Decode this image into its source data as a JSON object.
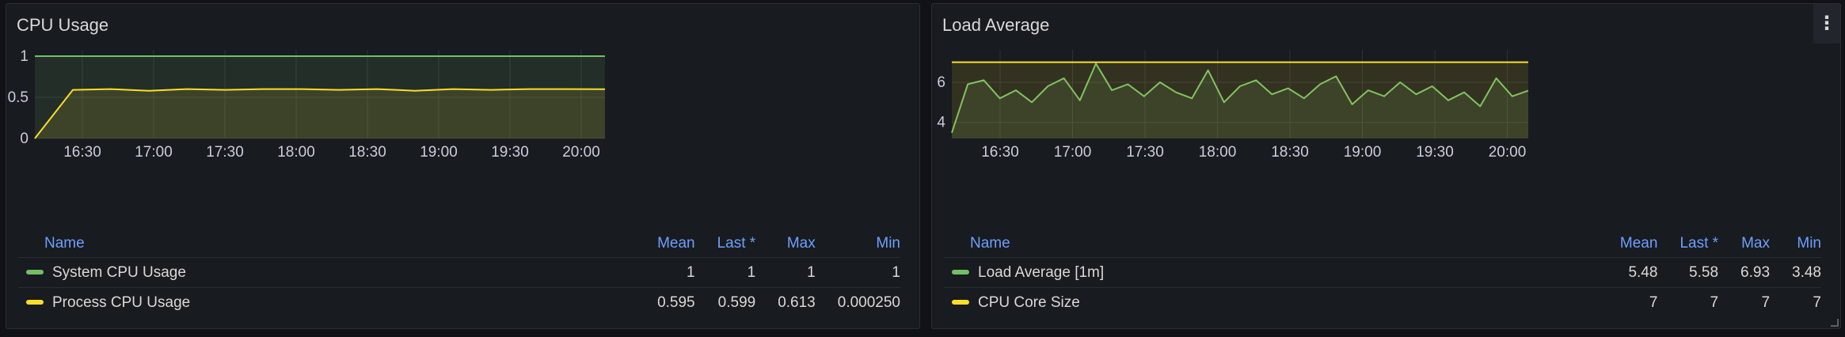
{
  "colors": {
    "green": "#73bf69",
    "yellow": "#fade2a",
    "header": "#6e9fff"
  },
  "legend_headers": {
    "name": "Name",
    "mean": "Mean",
    "last": "Last *",
    "max": "Max",
    "min": "Min"
  },
  "panels": [
    {
      "title": "CPU Usage",
      "chart_data": {
        "type": "area",
        "x_ticks": [
          "16:30",
          "17:00",
          "17:30",
          "18:00",
          "18:30",
          "19:00",
          "19:30",
          "20:00"
        ],
        "y_ticks": [
          "0",
          "0.5",
          "1"
        ],
        "ylim": [
          0,
          1
        ],
        "grid": true,
        "series": [
          {
            "name": "System CPU Usage",
            "color": "#73bf69",
            "values": [
              1,
              1,
              1,
              1,
              1,
              1,
              1,
              1,
              1,
              1,
              1,
              1,
              1,
              1,
              1,
              1
            ]
          },
          {
            "name": "Process CPU Usage",
            "color": "#fade2a",
            "values": [
              0,
              0.59,
              0.6,
              0.58,
              0.6,
              0.59,
              0.6,
              0.6,
              0.59,
              0.6,
              0.58,
              0.6,
              0.59,
              0.6,
              0.6,
              0.599
            ]
          }
        ]
      },
      "legend": [
        {
          "name": "System CPU Usage",
          "color": "#73bf69",
          "mean": "1",
          "last": "1",
          "max": "1",
          "min": "1"
        },
        {
          "name": "Process CPU Usage",
          "color": "#fade2a",
          "mean": "0.595",
          "last": "0.599",
          "max": "0.613",
          "min": "0.000250"
        }
      ]
    },
    {
      "title": "Load Average",
      "menu_icon": "vertical-ellipsis-icon",
      "chart_data": {
        "type": "area",
        "x_ticks": [
          "16:30",
          "17:00",
          "17:30",
          "18:00",
          "18:30",
          "19:00",
          "19:30",
          "20:00"
        ],
        "y_ticks": [
          "4",
          "6"
        ],
        "ylim": [
          3.2,
          7.3
        ],
        "grid": true,
        "series": [
          {
            "name": "Load Average [1m]",
            "color": "#73bf69",
            "values": [
              3.48,
              5.9,
              6.1,
              5.2,
              5.6,
              5.0,
              5.8,
              6.2,
              5.1,
              6.93,
              5.6,
              5.9,
              5.3,
              6.0,
              5.5,
              5.2,
              6.6,
              5.0,
              5.8,
              6.1,
              5.4,
              5.7,
              5.2,
              5.9,
              6.3,
              4.9,
              5.6,
              5.3,
              6.0,
              5.4,
              5.8,
              5.1,
              5.5,
              4.8,
              6.2,
              5.3,
              5.58
            ]
          },
          {
            "name": "CPU Core Size",
            "color": "#fade2a",
            "values": [
              7,
              7,
              7,
              7,
              7,
              7,
              7,
              7,
              7,
              7,
              7,
              7,
              7,
              7,
              7,
              7
            ]
          }
        ]
      },
      "legend": [
        {
          "name": "Load Average [1m]",
          "color": "#73bf69",
          "mean": "5.48",
          "last": "5.58",
          "max": "6.93",
          "min": "3.48"
        },
        {
          "name": "CPU Core Size",
          "color": "#fade2a",
          "mean": "7",
          "last": "7",
          "max": "7",
          "min": "7"
        }
      ]
    }
  ]
}
